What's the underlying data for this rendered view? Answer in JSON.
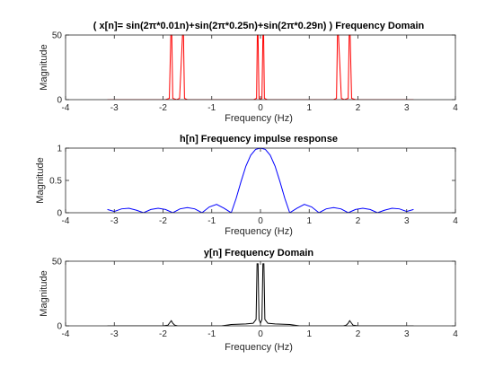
{
  "figure": {
    "background": "#ffffff"
  },
  "chart_data": [
    {
      "type": "line",
      "title": "( x[n]= sin(2π*0.01n)+sin(2π*0.25n)+sin(2π*0.29n) ) Frequency Domain",
      "xlabel": "Frequency (Hz)",
      "ylabel": "Magnitude",
      "xlim": [
        -4,
        4
      ],
      "ylim": [
        0,
        50
      ],
      "xticks": [
        -4,
        -3,
        -2,
        -1,
        0,
        1,
        2,
        3,
        4
      ],
      "yticks": [
        0,
        50
      ],
      "grid": false,
      "series": [
        {
          "color": "#ff0000",
          "x": [
            -3.1416,
            -1.95,
            -1.87,
            -1.84,
            -1.82,
            -1.8,
            -1.72,
            -1.66,
            -1.6,
            -1.58,
            -1.56,
            -1.5,
            -0.14,
            -0.08,
            -0.065,
            -0.05,
            -0.03,
            0.0,
            0.03,
            0.05,
            0.065,
            0.08,
            0.14,
            1.5,
            1.56,
            1.58,
            1.6,
            1.66,
            1.72,
            1.8,
            1.82,
            1.84,
            1.87,
            1.95,
            3.1416
          ],
          "y": [
            0,
            0,
            1,
            50,
            50,
            1,
            0,
            1,
            50,
            50,
            1,
            0,
            0,
            1,
            50,
            50,
            1,
            0,
            1,
            50,
            50,
            1,
            0,
            0,
            1,
            50,
            50,
            1,
            0,
            1,
            50,
            50,
            1,
            0,
            0
          ]
        }
      ]
    },
    {
      "type": "line",
      "title": "h[n] Frequency impulse response",
      "xlabel": "Frequency (Hz)",
      "ylabel": "Magnitude",
      "xlim": [
        -4,
        4
      ],
      "ylim": [
        0,
        1
      ],
      "xticks": [
        -4,
        -3,
        -2,
        -1,
        0,
        1,
        2,
        3,
        4
      ],
      "yticks": [
        0,
        0.5,
        1
      ],
      "ytick_labels": [
        "0",
        "0.5",
        "1"
      ],
      "grid": false,
      "series": [
        {
          "color": "#0000ff",
          "x": [
            -3.1416,
            -3.0,
            -2.85,
            -2.7,
            -2.55,
            -2.4,
            -2.25,
            -2.1,
            -1.95,
            -1.8,
            -1.65,
            -1.5,
            -1.35,
            -1.2,
            -1.05,
            -0.9,
            -0.75,
            -0.6,
            -0.5,
            -0.4,
            -0.3,
            -0.2,
            -0.1,
            0.0,
            0.1,
            0.2,
            0.3,
            0.4,
            0.5,
            0.6,
            0.75,
            0.9,
            1.05,
            1.2,
            1.35,
            1.5,
            1.65,
            1.8,
            1.95,
            2.1,
            2.25,
            2.4,
            2.55,
            2.7,
            2.85,
            3.0,
            3.1416
          ],
          "y": [
            0.05,
            0.02,
            0.06,
            0.07,
            0.04,
            0.0,
            0.05,
            0.07,
            0.05,
            0.0,
            0.06,
            0.08,
            0.06,
            0.0,
            0.09,
            0.13,
            0.07,
            0.0,
            0.22,
            0.48,
            0.72,
            0.89,
            0.98,
            1.0,
            0.98,
            0.89,
            0.72,
            0.48,
            0.22,
            0.0,
            0.07,
            0.13,
            0.09,
            0.0,
            0.06,
            0.08,
            0.06,
            0.0,
            0.05,
            0.07,
            0.05,
            0.0,
            0.04,
            0.07,
            0.06,
            0.02,
            0.05
          ]
        }
      ]
    },
    {
      "type": "line",
      "title": "y[n] Frequency Domain",
      "xlabel": "Frequency (Hz)",
      "ylabel": "Magnitude",
      "xlim": [
        -4,
        4
      ],
      "ylim": [
        0,
        50
      ],
      "xticks": [
        -4,
        -3,
        -2,
        -1,
        0,
        1,
        2,
        3,
        4
      ],
      "yticks": [
        0,
        50
      ],
      "grid": false,
      "series": [
        {
          "color": "#000000",
          "x": [
            -3.1416,
            -2.0,
            -1.9,
            -1.87,
            -1.83,
            -1.8,
            -1.76,
            -1.7,
            -0.8,
            -0.6,
            -0.3,
            -0.15,
            -0.09,
            -0.07,
            -0.05,
            -0.03,
            0.0,
            0.03,
            0.05,
            0.07,
            0.09,
            0.15,
            0.3,
            0.6,
            0.8,
            1.7,
            1.76,
            1.8,
            1.83,
            1.87,
            1.9,
            2.0,
            3.1416
          ],
          "y": [
            0,
            0,
            0.5,
            2,
            4,
            2,
            0.5,
            0,
            0,
            1,
            1.5,
            2,
            5,
            48,
            48,
            5,
            2,
            5,
            48,
            48,
            5,
            2,
            1.5,
            1,
            0,
            0,
            0.5,
            2,
            4,
            2,
            0.5,
            0,
            0
          ]
        }
      ]
    }
  ]
}
